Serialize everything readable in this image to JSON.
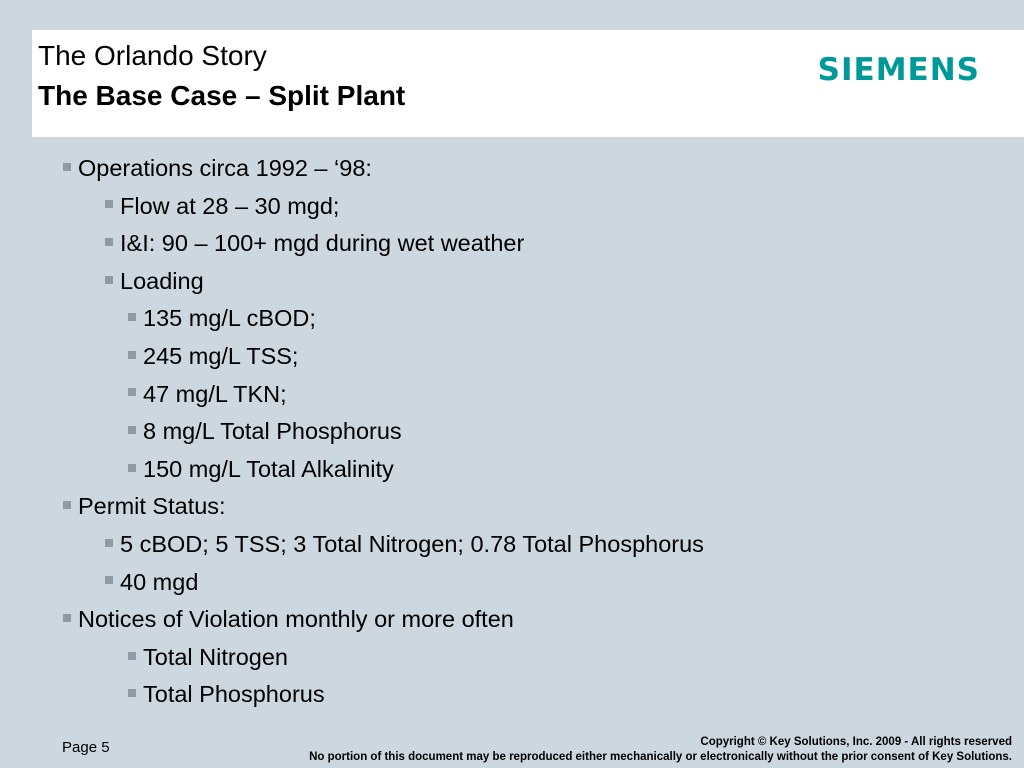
{
  "header": {
    "title": "The Orlando Story",
    "subtitle": "The Base Case – Split Plant",
    "logo_text": "SIEMENS",
    "logo_color": "#009999"
  },
  "bullets": [
    {
      "level": 1,
      "text": "Operations circa 1992 – ‘98:"
    },
    {
      "level": 2,
      "text": "Flow at 28 – 30 mgd;"
    },
    {
      "level": 2,
      "text": "I&I: 90 – 100+ mgd during wet weather"
    },
    {
      "level": 2,
      "text": "Loading"
    },
    {
      "level": 3,
      "text": "135 mg/L cBOD;"
    },
    {
      "level": 3,
      "text": "245 mg/L TSS;"
    },
    {
      "level": 3,
      "text": "47 mg/L TKN;"
    },
    {
      "level": 3,
      "text": "8 mg/L Total Phosphorus"
    },
    {
      "level": 3,
      "text": "150 mg/L Total Alkalinity"
    },
    {
      "level": 1,
      "text": "Permit Status:"
    },
    {
      "level": 2,
      "text": "5 cBOD; 5 TSS; 3 Total Nitrogen; 0.78 Total Phosphorus"
    },
    {
      "level": 2,
      "text": "40 mgd"
    },
    {
      "level": 1,
      "text": "Notices of Violation monthly or more often"
    },
    {
      "level": 3,
      "text": "Total Nitrogen"
    },
    {
      "level": 3,
      "text": "Total Phosphorus"
    }
  ],
  "footer": {
    "page_label": "Page 5",
    "copyright": "Copyright © Key Solutions, Inc. 2009  -  All rights reserved",
    "notice": "No portion of this document may be reproduced either mechanically or electronically without the prior consent of Key Solutions."
  }
}
